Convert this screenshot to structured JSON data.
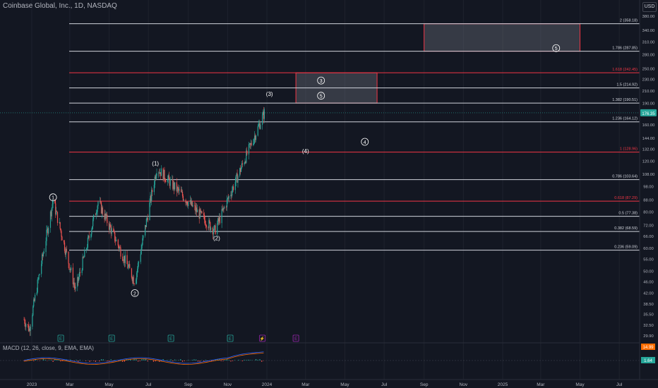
{
  "header": {
    "title": "Coinbase Global, Inc., 1D, NASDAQ",
    "currency": "USD"
  },
  "macd": {
    "label": "MACD (12, 26, close, 9, EMA, EMA)",
    "value_1": "14.99",
    "value_2": "1.64"
  },
  "chart_data": {
    "type": "candlestick",
    "symbol": "COIN",
    "interval": "1D",
    "y_scale": "log",
    "ylim": [
      29.9,
      400
    ],
    "last_price": 176.35,
    "price_ticks": [
      "380.00",
      "340.00",
      "310.00",
      "280.00",
      "250.00",
      "230.00",
      "210.00",
      "190.00",
      "176.35",
      "160.00",
      "144.00",
      "132.00",
      "120.00",
      "108.00",
      "98.00",
      "88.00",
      "80.00",
      "72.00",
      "66.00",
      "60.00",
      "55.00",
      "50.00",
      "46.00",
      "42.00",
      "38.50",
      "35.50",
      "32.50",
      "29.90"
    ],
    "time_ticks": [
      "2023",
      "Mar",
      "May",
      "Jul",
      "Sep",
      "Nov",
      "2024",
      "Mar",
      "May",
      "Jul",
      "Sep",
      "Nov",
      "2025",
      "Mar",
      "May",
      "Jul"
    ],
    "fib_levels": [
      {
        "label": "0.236 (59.09)",
        "value": 59.09,
        "color": "#d1d4dc"
      },
      {
        "label": "0.382 (68.59)",
        "value": 68.59,
        "color": "#d1d4dc"
      },
      {
        "label": "0.5 (77.38)",
        "value": 77.38,
        "color": "#d1d4dc"
      },
      {
        "label": "0.618 (87.29)",
        "value": 87.29,
        "color": "#f23645"
      },
      {
        "label": "0.786 (103.64)",
        "value": 103.64,
        "color": "#d1d4dc"
      },
      {
        "label": "1 (128.96)",
        "value": 128.96,
        "color": "#f23645"
      },
      {
        "label": "1.236 (164.12)",
        "value": 164.12,
        "color": "#d1d4dc"
      },
      {
        "label": "1.382 (190.51)",
        "value": 190.51,
        "color": "#d1d4dc"
      },
      {
        "label": "1.5 (214.92)",
        "value": 214.92,
        "color": "#d1d4dc"
      },
      {
        "label": "1.618 (242.45)",
        "value": 242.45,
        "color": "#f23645"
      },
      {
        "label": "1.786 (287.85)",
        "value": 287.85,
        "color": "#d1d4dc"
      },
      {
        "label": "2 (358.18)",
        "value": 358.18,
        "color": "#d1d4dc"
      }
    ],
    "wave_labels": [
      {
        "text": "1",
        "style": "circle",
        "date": "2023-02-03",
        "price": 90
      },
      {
        "text": "2",
        "style": "circle",
        "date": "2023-06-10",
        "price": 42
      },
      {
        "text": "(1)",
        "style": "paren",
        "date": "2023-07-12",
        "price": 118
      },
      {
        "text": "(2)",
        "style": "paren",
        "date": "2023-10-15",
        "price": 65
      },
      {
        "text": "(3)",
        "style": "paren",
        "date": "2024-01-05",
        "price": 205
      },
      {
        "text": "(4)",
        "style": "paren",
        "date": "2024-03-01",
        "price": 130
      },
      {
        "text": "4",
        "style": "circle",
        "date": "2024-06-01",
        "price": 140
      },
      {
        "text": "3",
        "style": "circle",
        "date": "2024-03-25",
        "price": 228
      },
      {
        "text": "(5)",
        "style": "circle",
        "date": "2024-03-25",
        "price": 202
      },
      {
        "text": "5",
        "style": "circle",
        "date": "2025-03-25",
        "price": 295
      }
    ],
    "target_boxes": [
      {
        "from": "2024-02-15",
        "to": "2024-06-20",
        "top": 242.45,
        "bottom": 190.51
      },
      {
        "from": "2024-09-01",
        "to": "2025-05-01",
        "top": 358.18,
        "bottom": 287.85
      }
    ],
    "candles_summary": {
      "start": {
        "date": "2022-12-20",
        "price": 34
      },
      "events": [
        {
          "date": "2022-12-28",
          "low": 31.5
        },
        {
          "date": "2023-02-03",
          "high": 88
        },
        {
          "date": "2023-03-10",
          "low": 43
        },
        {
          "date": "2023-04-14",
          "high": 87
        },
        {
          "date": "2023-06-10",
          "low": 46
        },
        {
          "date": "2023-07-14",
          "high": 114
        },
        {
          "date": "2023-10-12",
          "low": 69
        },
        {
          "date": "2023-12-28",
          "close": 176.35
        }
      ]
    }
  }
}
